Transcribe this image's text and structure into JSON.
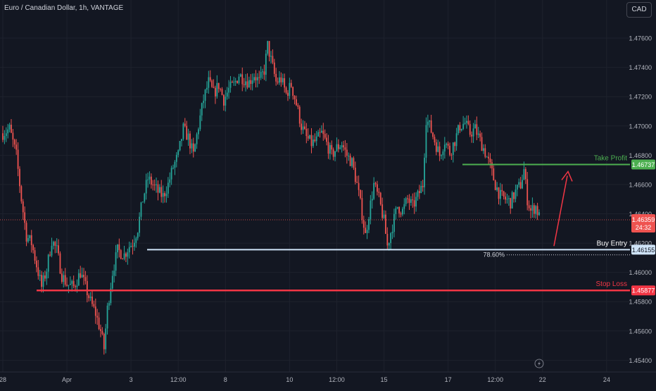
{
  "header": {
    "symbol_title": "Euro / Canadian Dollar, 1h, VANTAGE",
    "currency_button": "CAD"
  },
  "colors": {
    "background": "#131722",
    "grid": "#1e222d",
    "up": "#26a69a",
    "down": "#ef5350",
    "take_profit": "#4caf50",
    "buy_entry": "#cfe3f7",
    "stop_loss": "#f23645",
    "arrow": "#f23645",
    "axis_text": "#b2b5be"
  },
  "chart_data": {
    "type": "candlestick",
    "title": "Euro / Canadian Dollar, 1h, VANTAGE",
    "y_axis": {
      "ylim": [
        1.4532,
        1.4786
      ],
      "ticks": [
        1.454,
        1.456,
        1.458,
        1.46,
        1.462,
        1.464,
        1.466,
        1.468,
        1.47,
        1.472,
        1.474,
        1.476
      ],
      "tick_labels": [
        "1.45400",
        "1.45600",
        "1.45800",
        "1.46000",
        "1.46200",
        "1.46400",
        "1.46600",
        "1.46800",
        "1.47000",
        "1.47200",
        "1.47400",
        "1.47600"
      ]
    },
    "x_axis": {
      "labels": [
        "28",
        "Apr",
        "3",
        "12:00",
        "8",
        "10",
        "12:00",
        "15",
        "17",
        "12:00",
        "22",
        "24"
      ],
      "label_index": [
        0,
        38,
        76,
        104,
        132,
        170,
        198,
        226,
        264,
        292,
        320,
        358
      ]
    },
    "grid": true,
    "price_path": [
      [
        0,
        1.4695
      ],
      [
        4,
        1.4698
      ],
      [
        8,
        1.468
      ],
      [
        11,
        1.465
      ],
      [
        14,
        1.4625
      ],
      [
        17,
        1.462
      ],
      [
        20,
        1.4605
      ],
      [
        23,
        1.459
      ],
      [
        26,
        1.4602
      ],
      [
        29,
        1.4622
      ],
      [
        32,
        1.4615
      ],
      [
        35,
        1.4598
      ],
      [
        38,
        1.4592
      ],
      [
        42,
        1.459
      ],
      [
        46,
        1.46
      ],
      [
        49,
        1.459
      ],
      [
        52,
        1.458
      ],
      [
        55,
        1.4572
      ],
      [
        58,
        1.456
      ],
      [
        60,
        1.4548
      ],
      [
        62,
        1.4575
      ],
      [
        65,
        1.46
      ],
      [
        68,
        1.4615
      ],
      [
        72,
        1.4612
      ],
      [
        75,
        1.4618
      ],
      [
        77,
        1.462
      ],
      [
        80,
        1.463
      ],
      [
        83,
        1.465
      ],
      [
        86,
        1.4664
      ],
      [
        89,
        1.466
      ],
      [
        92,
        1.4655
      ],
      [
        95,
        1.4652
      ],
      [
        98,
        1.466
      ],
      [
        101,
        1.4672
      ],
      [
        104,
        1.468
      ],
      [
        107,
        1.4698
      ],
      [
        110,
        1.4692
      ],
      [
        113,
        1.468
      ],
      [
        116,
        1.47
      ],
      [
        119,
        1.4718
      ],
      [
        122,
        1.473
      ],
      [
        125,
        1.4722
      ],
      [
        128,
        1.4728
      ],
      [
        131,
        1.4718
      ],
      [
        134,
        1.4725
      ],
      [
        137,
        1.4728
      ],
      [
        140,
        1.4735
      ],
      [
        143,
        1.4732
      ],
      [
        146,
        1.473
      ],
      [
        149,
        1.4735
      ],
      [
        152,
        1.473
      ],
      [
        155,
        1.4738
      ],
      [
        157,
        1.4755
      ],
      [
        159,
        1.4745
      ],
      [
        162,
        1.473
      ],
      [
        165,
        1.4732
      ],
      [
        168,
        1.4722
      ],
      [
        171,
        1.4728
      ],
      [
        174,
        1.4715
      ],
      [
        177,
        1.47
      ],
      [
        180,
        1.4692
      ],
      [
        183,
        1.4688
      ],
      [
        186,
        1.469
      ],
      [
        189,
        1.4695
      ],
      [
        192,
        1.4688
      ],
      [
        195,
        1.468
      ],
      [
        198,
        1.4685
      ],
      [
        201,
        1.4688
      ],
      [
        204,
        1.468
      ],
      [
        207,
        1.4675
      ],
      [
        210,
        1.466
      ],
      [
        213,
        1.464
      ],
      [
        215,
        1.4625
      ],
      [
        217,
        1.464
      ],
      [
        220,
        1.466
      ],
      [
        223,
        1.465
      ],
      [
        226,
        1.4635
      ],
      [
        228,
        1.4618
      ],
      [
        231,
        1.4632
      ],
      [
        234,
        1.4645
      ],
      [
        237,
        1.4642
      ],
      [
        240,
        1.465
      ],
      [
        243,
        1.4645
      ],
      [
        246,
        1.4652
      ],
      [
        249,
        1.466
      ],
      [
        251,
        1.4705
      ],
      [
        253,
        1.47
      ],
      [
        256,
        1.469
      ],
      [
        259,
        1.468
      ],
      [
        262,
        1.469
      ],
      [
        265,
        1.4682
      ],
      [
        268,
        1.469
      ],
      [
        271,
        1.47
      ],
      [
        274,
        1.4702
      ],
      [
        277,
        1.4695
      ],
      [
        280,
        1.4698
      ],
      [
        283,
        1.469
      ],
      [
        286,
        1.4682
      ],
      [
        289,
        1.4672
      ],
      [
        292,
        1.466
      ],
      [
        295,
        1.4652
      ],
      [
        298,
        1.465
      ],
      [
        301,
        1.4648
      ],
      [
        304,
        1.4655
      ],
      [
        307,
        1.466
      ],
      [
        309,
        1.467
      ],
      [
        311,
        1.465
      ],
      [
        313,
        1.4642
      ],
      [
        316,
        1.4645
      ],
      [
        318,
        1.4638
      ]
    ],
    "candle_count": 319,
    "levels": [
      {
        "name": "Take Profit",
        "price": 1.46737,
        "label": "1.46737"
      },
      {
        "name": "Buy Entry",
        "price": 1.46155,
        "label": "1.46155"
      },
      {
        "name": "Stop Loss",
        "price": 1.45877,
        "label": "1.45877"
      }
    ],
    "current_price": {
      "label": "1.46359",
      "price": 1.46359,
      "countdown": "24:32"
    },
    "fib_label": "78.60%",
    "fib_price": 1.4612
  }
}
